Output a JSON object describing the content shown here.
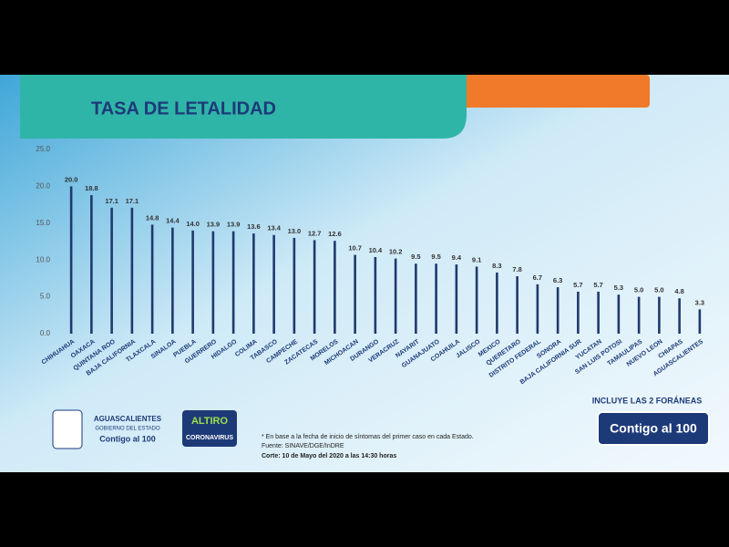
{
  "chart_data": {
    "type": "bar",
    "title": "TASA DE LETALIDAD",
    "categories": [
      "CHIHUAHUA",
      "OAXACA",
      "QUINTANA ROO",
      "BAJA CALIFORNIA",
      "TLAXCALA",
      "SINALOA",
      "PUEBLA",
      "GUERRERO",
      "HIDALGO",
      "COLIMA",
      "TABASCO",
      "CAMPECHE",
      "ZACATECAS",
      "MORELOS",
      "MICHOACAN",
      "DURANGO",
      "VERACRUZ",
      "NAYARIT",
      "GUANAJUATO",
      "COAHUILA",
      "JALISCO",
      "MEXICO",
      "QUERETARO",
      "DISTRITO FEDERAL",
      "SONORA",
      "BAJA CALIFORNIA SUR",
      "YUCATAN",
      "SAN LUIS POTOSI",
      "TAMAULIPAS",
      "NUEVO LEON",
      "CHIAPAS",
      "AGUASCALIENTES"
    ],
    "values": [
      20.0,
      18.8,
      17.1,
      17.1,
      14.8,
      14.4,
      14.0,
      13.9,
      13.9,
      13.6,
      13.4,
      13.0,
      12.7,
      12.6,
      10.7,
      10.4,
      10.2,
      9.5,
      9.5,
      9.4,
      9.1,
      8.3,
      7.8,
      6.7,
      6.3,
      5.7,
      5.7,
      5.3,
      5.0,
      5.0,
      4.8,
      3.3
    ],
    "value_labels": [
      "20.0",
      "18.8",
      "17.1",
      "17.1",
      "14.8",
      "14.4",
      "14.0",
      "13.9",
      "13.9",
      "13.6",
      "13.4",
      "13.0",
      "12.7",
      "12.6",
      "10.7",
      "10.4",
      "10.2",
      "9.5",
      "9.5",
      "9.4",
      "9.1",
      "8.3",
      "7.8",
      "6.7",
      "6.3",
      "5.7",
      "5.7",
      "5.3",
      "5.0",
      "5.0",
      "4.8",
      "3.3"
    ],
    "color": "#1f3a6e",
    "ylim": [
      0,
      25
    ],
    "yticks": [
      {
        "value": 0,
        "label": "0.0"
      },
      {
        "value": 5,
        "label": "5.0"
      },
      {
        "value": 10,
        "label": "10.0"
      },
      {
        "value": 15,
        "label": "15.0"
      },
      {
        "value": 20,
        "label": "20.0"
      },
      {
        "value": 25,
        "label": "25.0"
      }
    ],
    "grid": false,
    "annotation": "INCLUYE LAS 2 FORÁNEAS"
  },
  "footer": {
    "notes": [
      "* En base a la fecha de inicio de síntomas del primer caso en cada Estado.",
      "Fuente: SINAVE/DGE/InDRE",
      "Corte: 10 de Mayo del 2020 a las 14:30 horas"
    ],
    "logo_state": [
      "AGUASCALIENTES",
      "GOBIERNO DEL ESTADO",
      "Contigo al 100"
    ],
    "logo_campaign": [
      "ALTIRO",
      "CORONAVIRUS"
    ],
    "badge": "Contigo al 100"
  }
}
